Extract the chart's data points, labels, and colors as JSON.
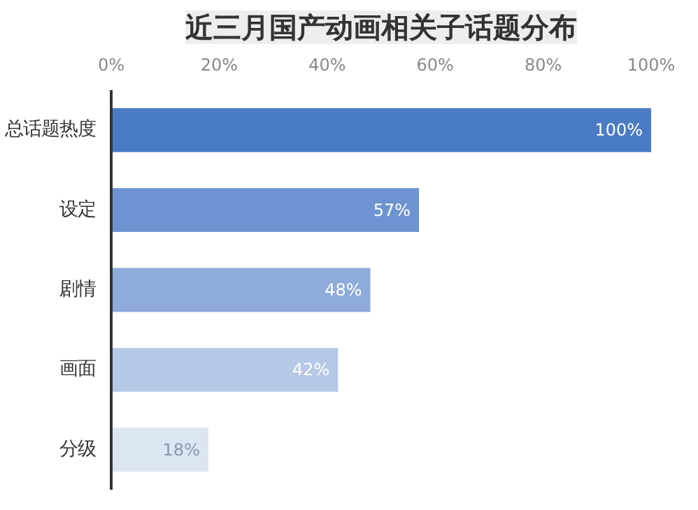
{
  "chart_data": {
    "type": "bar",
    "orientation": "horizontal",
    "title": "近三月国产动画相关子话题分布",
    "categories": [
      "总话题热度",
      "设定",
      "剧情",
      "画面",
      "分级"
    ],
    "values": [
      100,
      57,
      48,
      42,
      18
    ],
    "colors": [
      "#4a7bc4",
      "#6d94d0",
      "#8eabd9",
      "#b5c9e6",
      "#dce5f2"
    ],
    "value_labels": [
      "100%",
      "57%",
      "48%",
      "42%",
      "18%"
    ],
    "xlim": [
      0,
      100
    ],
    "xticks": [
      {
        "value": 0,
        "label": "0%"
      },
      {
        "value": 20,
        "label": "20%"
      },
      {
        "value": 40,
        "label": "40%"
      },
      {
        "value": 60,
        "label": "60%"
      },
      {
        "value": 80,
        "label": "80%"
      },
      {
        "value": 100,
        "label": "100%"
      }
    ],
    "grid": false
  }
}
